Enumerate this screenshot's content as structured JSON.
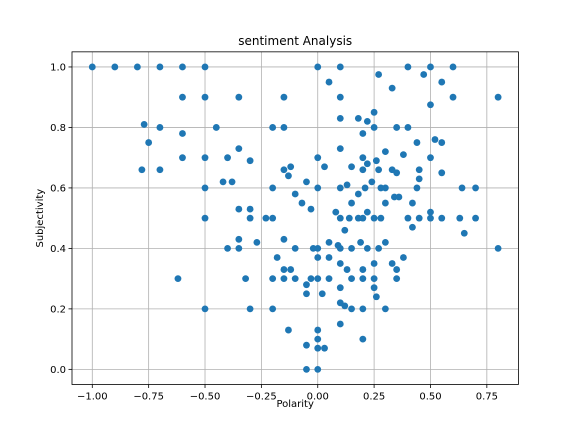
{
  "chart_data": {
    "type": "scatter",
    "title": "sentiment Analysis",
    "xlabel": "Polarity",
    "ylabel": "Subjectivity",
    "xlim": [
      -1.09,
      0.89
    ],
    "ylim": [
      -0.05,
      1.05
    ],
    "grid": true,
    "marker_color": "#1f77b4",
    "xticks": [
      {
        "value": -1.0,
        "label": "−1.00"
      },
      {
        "value": -0.75,
        "label": "−0.75"
      },
      {
        "value": -0.5,
        "label": "−0.50"
      },
      {
        "value": -0.25,
        "label": "−0.25"
      },
      {
        "value": 0.0,
        "label": "0.00"
      },
      {
        "value": 0.25,
        "label": "0.25"
      },
      {
        "value": 0.5,
        "label": "0.50"
      },
      {
        "value": 0.75,
        "label": "0.75"
      }
    ],
    "yticks": [
      {
        "value": 0.0,
        "label": "0.0"
      },
      {
        "value": 0.2,
        "label": "0.2"
      },
      {
        "value": 0.4,
        "label": "0.4"
      },
      {
        "value": 0.6,
        "label": "0.6"
      },
      {
        "value": 0.8,
        "label": "0.8"
      },
      {
        "value": 1.0,
        "label": "1.0"
      }
    ],
    "points": [
      [
        -1.0,
        1.0
      ],
      [
        -0.9,
        1.0
      ],
      [
        -0.8,
        1.0
      ],
      [
        -0.7,
        1.0
      ],
      [
        -0.6,
        1.0
      ],
      [
        -0.5,
        1.0
      ],
      [
        0.0,
        1.0
      ],
      [
        0.1,
        1.0
      ],
      [
        0.4,
        1.0
      ],
      [
        0.5,
        1.0
      ],
      [
        0.6,
        1.0
      ],
      [
        0.05,
        0.95
      ],
      [
        0.55,
        0.95
      ],
      [
        0.27,
        0.975
      ],
      [
        0.47,
        0.975
      ],
      [
        0.33,
        0.93
      ],
      [
        -0.6,
        0.9
      ],
      [
        -0.5,
        0.9
      ],
      [
        -0.35,
        0.9
      ],
      [
        -0.15,
        0.9
      ],
      [
        0.1,
        0.9
      ],
      [
        0.6,
        0.9
      ],
      [
        0.8,
        0.9
      ],
      [
        0.5,
        0.875
      ],
      [
        0.25,
        0.85
      ],
      [
        -0.77,
        0.81
      ],
      [
        -0.7,
        0.8
      ],
      [
        -0.45,
        0.8
      ],
      [
        -0.2,
        0.8
      ],
      [
        -0.15,
        0.8
      ],
      [
        0.35,
        0.8
      ],
      [
        0.4,
        0.8
      ],
      [
        -0.6,
        0.78
      ],
      [
        0.2,
        0.78
      ],
      [
        -0.75,
        0.75
      ],
      [
        -0.35,
        0.73
      ],
      [
        0.55,
        0.75
      ],
      [
        0.25,
        0.8
      ],
      [
        0.1,
        0.83
      ],
      [
        0.18,
        0.83
      ],
      [
        0.22,
        0.82
      ],
      [
        -0.3,
        0.69
      ],
      [
        -0.6,
        0.7
      ],
      [
        -0.5,
        0.7
      ],
      [
        -0.4,
        0.7
      ],
      [
        0.0,
        0.7
      ],
      [
        0.1,
        0.73
      ],
      [
        0.3,
        0.72
      ],
      [
        0.38,
        0.71
      ],
      [
        0.44,
        0.75
      ],
      [
        0.52,
        0.76
      ],
      [
        -0.78,
        0.66
      ],
      [
        -0.7,
        0.66
      ],
      [
        -0.15,
        0.66
      ],
      [
        -0.12,
        0.67
      ],
      [
        0.03,
        0.67
      ],
      [
        0.2,
        0.7
      ],
      [
        0.22,
        0.68
      ],
      [
        0.26,
        0.69
      ],
      [
        0.27,
        0.66
      ],
      [
        0.33,
        0.66
      ],
      [
        0.35,
        0.65
      ],
      [
        0.45,
        0.66
      ],
      [
        0.5,
        0.7
      ],
      [
        0.55,
        0.65
      ],
      [
        0.2,
        0.66
      ],
      [
        0.15,
        0.67
      ],
      [
        -0.42,
        0.62
      ],
      [
        -0.38,
        0.62
      ],
      [
        -0.13,
        0.64
      ],
      [
        -0.2,
        0.6
      ],
      [
        -0.5,
        0.6
      ],
      [
        -0.05,
        0.62
      ],
      [
        0.0,
        0.6
      ],
      [
        0.1,
        0.6
      ],
      [
        0.13,
        0.61
      ],
      [
        0.21,
        0.6
      ],
      [
        0.24,
        0.62
      ],
      [
        0.28,
        0.6
      ],
      [
        0.34,
        0.57
      ],
      [
        0.36,
        0.57
      ],
      [
        0.44,
        0.6
      ],
      [
        0.45,
        0.63
      ],
      [
        0.64,
        0.6
      ],
      [
        0.7,
        0.6
      ],
      [
        -0.1,
        0.58
      ],
      [
        0.18,
        0.58
      ],
      [
        0.3,
        0.6
      ],
      [
        -0.35,
        0.53
      ],
      [
        -0.3,
        0.53
      ],
      [
        -0.5,
        0.5
      ],
      [
        -0.3,
        0.5
      ],
      [
        -0.23,
        0.5
      ],
      [
        -0.2,
        0.5
      ],
      [
        -0.07,
        0.55
      ],
      [
        -0.03,
        0.53
      ],
      [
        0.08,
        0.52
      ],
      [
        0.1,
        0.5
      ],
      [
        0.14,
        0.5
      ],
      [
        0.18,
        0.5
      ],
      [
        0.2,
        0.5
      ],
      [
        0.25,
        0.5
      ],
      [
        0.28,
        0.5
      ],
      [
        0.3,
        0.55
      ],
      [
        0.4,
        0.5
      ],
      [
        0.45,
        0.5
      ],
      [
        0.5,
        0.5
      ],
      [
        0.55,
        0.5
      ],
      [
        0.63,
        0.5
      ],
      [
        0.7,
        0.5
      ],
      [
        0.15,
        0.55
      ],
      [
        0.22,
        0.52
      ],
      [
        0.42,
        0.55
      ],
      [
        0.5,
        0.52
      ],
      [
        -0.35,
        0.43
      ],
      [
        -0.4,
        0.4
      ],
      [
        -0.35,
        0.4
      ],
      [
        -0.27,
        0.42
      ],
      [
        -0.15,
        0.43
      ],
      [
        -0.1,
        0.4
      ],
      [
        -0.02,
        0.4
      ],
      [
        0.0,
        0.4
      ],
      [
        0.05,
        0.42
      ],
      [
        0.09,
        0.41
      ],
      [
        0.1,
        0.4
      ],
      [
        0.12,
        0.46
      ],
      [
        0.15,
        0.4
      ],
      [
        0.19,
        0.42
      ],
      [
        0.22,
        0.4
      ],
      [
        0.27,
        0.4
      ],
      [
        0.3,
        0.42
      ],
      [
        0.38,
        0.37
      ],
      [
        0.42,
        0.47
      ],
      [
        0.65,
        0.45
      ],
      [
        0.8,
        0.4
      ],
      [
        -0.18,
        0.37
      ],
      [
        0.0,
        0.37
      ],
      [
        0.05,
        0.37
      ],
      [
        -0.15,
        0.33
      ],
      [
        -0.12,
        0.33
      ],
      [
        0.1,
        0.35
      ],
      [
        0.13,
        0.33
      ],
      [
        0.2,
        0.33
      ],
      [
        0.25,
        0.35
      ],
      [
        0.33,
        0.35
      ],
      [
        0.35,
        0.33
      ],
      [
        -0.62,
        0.3
      ],
      [
        -0.32,
        0.3
      ],
      [
        -0.2,
        0.3
      ],
      [
        -0.15,
        0.3
      ],
      [
        -0.1,
        0.3
      ],
      [
        -0.03,
        0.3
      ],
      [
        0.0,
        0.3
      ],
      [
        0.05,
        0.3
      ],
      [
        0.15,
        0.3
      ],
      [
        0.2,
        0.3
      ],
      [
        0.25,
        0.3
      ],
      [
        0.35,
        0.3
      ],
      [
        -0.05,
        0.28
      ],
      [
        0.1,
        0.27
      ],
      [
        0.25,
        0.27
      ],
      [
        -0.05,
        0.25
      ],
      [
        0.02,
        0.25
      ],
      [
        0.26,
        0.24
      ],
      [
        -0.5,
        0.2
      ],
      [
        -0.3,
        0.2
      ],
      [
        -0.2,
        0.2
      ],
      [
        0.1,
        0.22
      ],
      [
        0.12,
        0.21
      ],
      [
        0.15,
        0.2
      ],
      [
        0.2,
        0.2
      ],
      [
        0.3,
        0.2
      ],
      [
        0.1,
        0.15
      ],
      [
        -0.13,
        0.13
      ],
      [
        0.0,
        0.13
      ],
      [
        0.0,
        0.1
      ],
      [
        0.2,
        0.1
      ],
      [
        -0.05,
        0.08
      ],
      [
        0.03,
        0.07
      ],
      [
        0.0,
        0.07
      ],
      [
        -0.05,
        0.0
      ],
      [
        0.0,
        0.0
      ]
    ]
  }
}
